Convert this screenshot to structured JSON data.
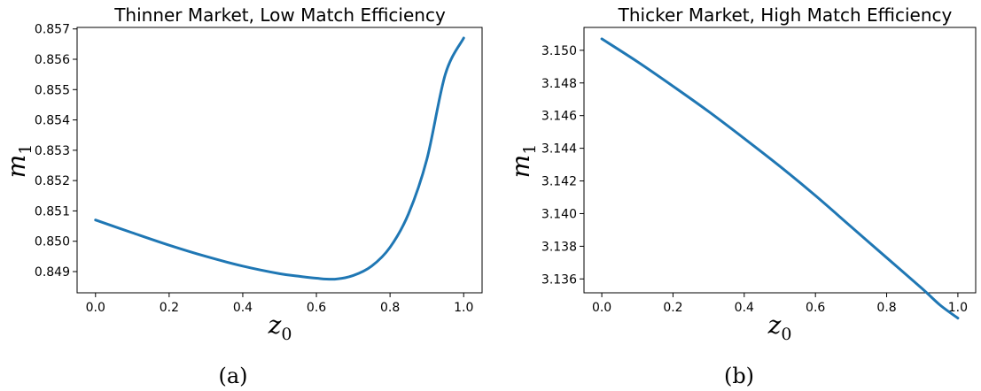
{
  "chart_data": [
    {
      "type": "line",
      "title": "Thinner Market, Low Match Efficiency",
      "xlabel": "z",
      "xlabel_sub": "0",
      "ylabel": "m",
      "ylabel_sub": "1",
      "caption": "(a)",
      "xlim": [
        -0.05,
        1.05
      ],
      "ylim": [
        0.8483,
        0.85705
      ],
      "xticks": [
        "0.0",
        "0.2",
        "0.4",
        "0.6",
        "0.8",
        "1.0"
      ],
      "yticks": [
        "0.849",
        "0.850",
        "0.851",
        "0.852",
        "0.853",
        "0.854",
        "0.855",
        "0.856",
        "0.857"
      ],
      "grid": false,
      "series": [
        {
          "color": "#1f77b4",
          "x": [
            0.0,
            0.1,
            0.2,
            0.3,
            0.4,
            0.5,
            0.55,
            0.6,
            0.65,
            0.7,
            0.75,
            0.8,
            0.85,
            0.9,
            0.95,
            1.0
          ],
          "y": [
            0.8507,
            0.85028,
            0.84987,
            0.8495,
            0.84918,
            0.84893,
            0.84885,
            0.84878,
            0.84875,
            0.84887,
            0.84918,
            0.8498,
            0.8509,
            0.8527,
            0.8555,
            0.8567
          ]
        }
      ]
    },
    {
      "type": "line",
      "title": "Thicker Market, High Match Efficiency",
      "xlabel": "z",
      "xlabel_sub": "0",
      "ylabel": "m",
      "ylabel_sub": "1",
      "caption": "(b)",
      "xlim": [
        -0.05,
        1.05
      ],
      "ylim": [
        3.13515,
        3.1514
      ],
      "xticks": [
        "0.0",
        "0.2",
        "0.4",
        "0.6",
        "0.8",
        "1.0"
      ],
      "yticks": [
        "3.136",
        "3.138",
        "3.140",
        "3.142",
        "3.144",
        "3.146",
        "3.148",
        "3.150"
      ],
      "grid": false,
      "series": [
        {
          "color": "#1f77b4",
          "x": [
            0.0,
            0.1,
            0.2,
            0.3,
            0.4,
            0.5,
            0.6,
            0.7,
            0.8,
            0.9,
            0.95,
            1.0
          ],
          "y": [
            3.1507,
            3.1493,
            3.1478,
            3.14625,
            3.1446,
            3.1429,
            3.1411,
            3.1392,
            3.1373,
            3.1354,
            3.1344,
            3.1336
          ]
        }
      ]
    }
  ]
}
